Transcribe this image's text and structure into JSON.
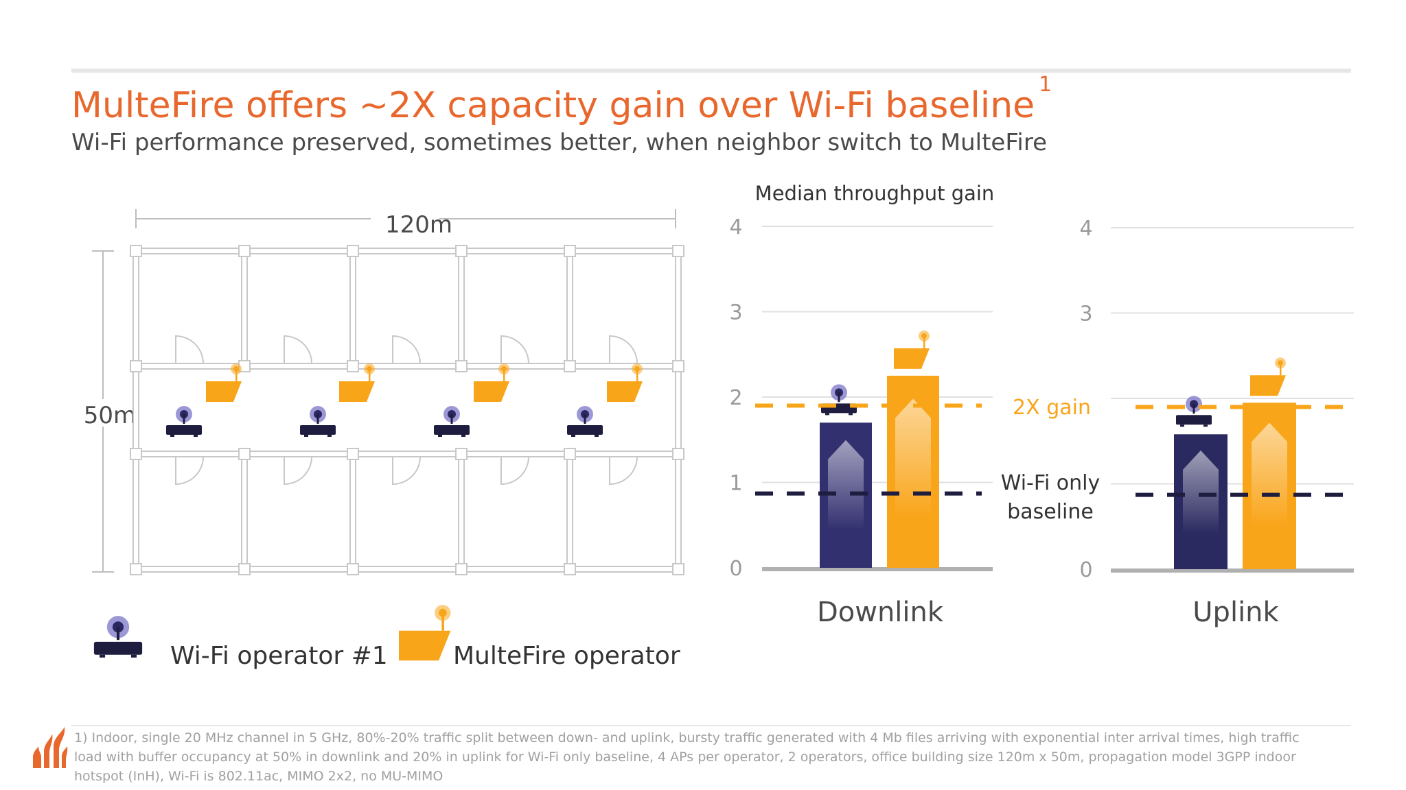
{
  "header": {
    "title": "MulteFire offers ~2X capacity gain over Wi-Fi baseline",
    "title_superscript": "1",
    "subtitle": "Wi-Fi performance preserved, sometimes better, when neighbor switch to MulteFire"
  },
  "floorplan": {
    "width_label": "120m",
    "height_label": "50m",
    "legend": {
      "wifi_label": "Wi-Fi operator #1",
      "multefire_label": "MulteFire operator"
    }
  },
  "chart_data": [
    {
      "type": "bar",
      "title": "Median throughput gain",
      "xlabel": "Downlink",
      "ylim": [
        0,
        4
      ],
      "yticks": [
        "0",
        "1",
        "2",
        "3",
        "4"
      ],
      "series": [
        {
          "name": "Wi-Fi operator #1",
          "values": [
            1.7
          ]
        },
        {
          "name": "MulteFire operator",
          "values": [
            2.25
          ]
        }
      ],
      "reference_lines": [
        {
          "label": "2X gain",
          "value": 1.9
        },
        {
          "label": "Wi-Fi only baseline",
          "value": 0.87
        }
      ]
    },
    {
      "type": "bar",
      "xlabel": "Uplink",
      "ylim": [
        0,
        4
      ],
      "yticks": [
        "0",
        "3",
        "4"
      ],
      "series": [
        {
          "name": "Wi-Fi operator #1",
          "values": [
            1.58
          ]
        },
        {
          "name": "MulteFire operator",
          "values": [
            1.95
          ]
        }
      ],
      "reference_lines": [
        {
          "value": 1.9
        },
        {
          "value": 0.87
        }
      ]
    }
  ],
  "annotations": {
    "gain_label": "2X gain",
    "baseline_label_line1": "Wi-Fi only",
    "baseline_label_line2": "baseline"
  },
  "colors": {
    "accent_orange": "#e8672c",
    "multefire_orange": "#f9a51a",
    "wifi_navy": "#333070",
    "wifi_dark": "#1e1d3f",
    "wifi_purple_dot": "#5b56b0",
    "grid": "#e0e0e0"
  },
  "footnote": "1) Indoor, single 20 MHz channel in 5 GHz, 80%-20% traffic split between down- and uplink, bursty traffic generated with 4 Mb files arriving with exponential inter arrival times, high traffic load with buffer occupancy at 50% in downlink and 20% in uplink for Wi-Fi only baseline, 4 APs per operator, 2 operators, office building size 120m x 50m, propagation model 3GPP indoor hotspot (InH), Wi-Fi is 802.11ac, MIMO 2x2,  no MU-MIMO"
}
